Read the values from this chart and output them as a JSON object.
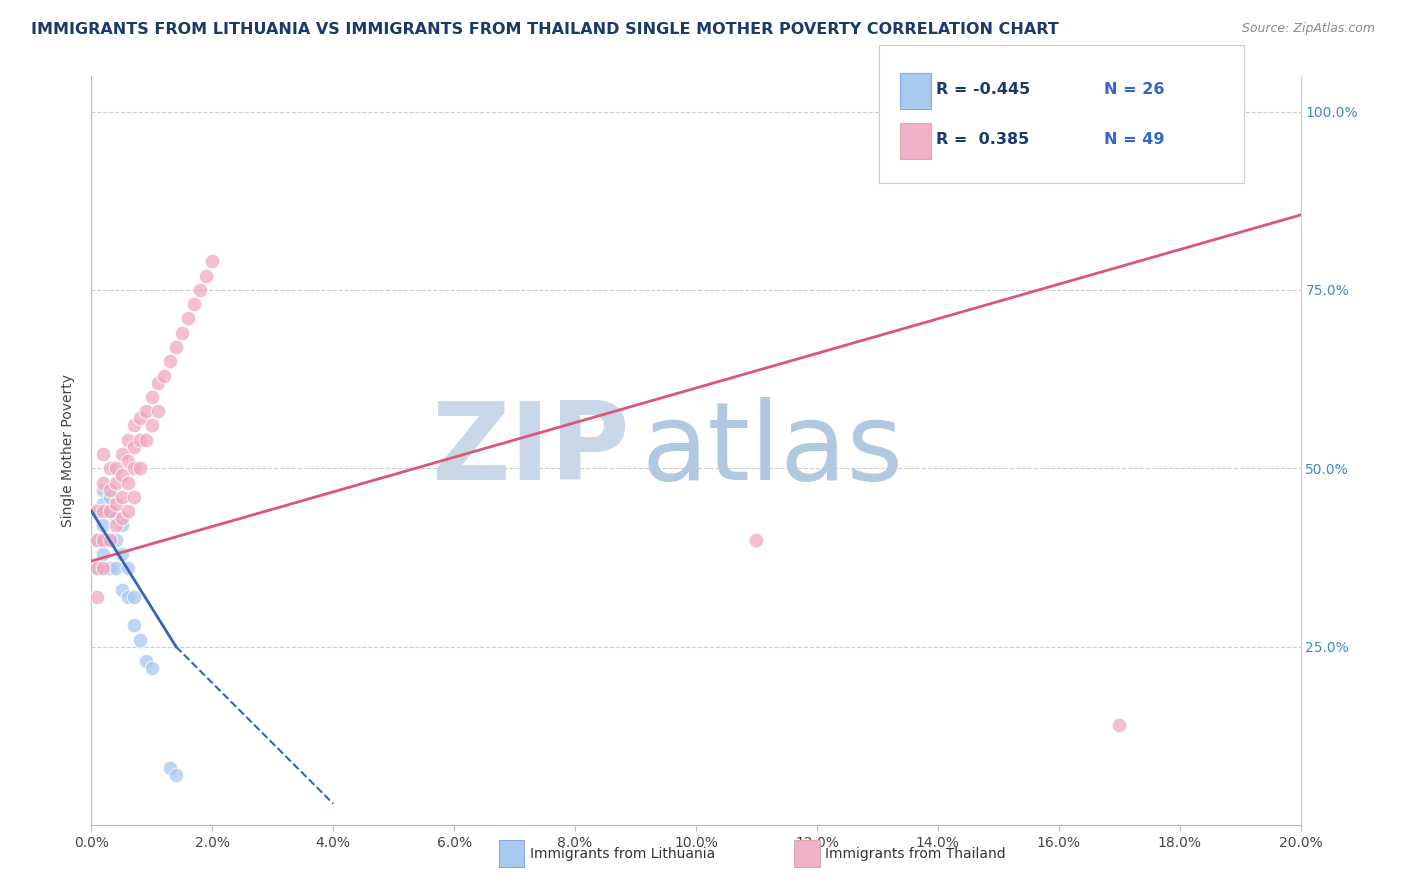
{
  "title": "IMMIGRANTS FROM LITHUANIA VS IMMIGRANTS FROM THAILAND SINGLE MOTHER POVERTY CORRELATION CHART",
  "source_text": "Source: ZipAtlas.com",
  "ylabel": "Single Mother Poverty",
  "xlim": [
    0.0,
    0.2
  ],
  "ylim": [
    0.0,
    1.05
  ],
  "title_color": "#1a3a6b",
  "title_fontsize": 11.5,
  "background_color": "#ffffff",
  "plot_bg_color": "#ffffff",
  "watermark_zip": "ZIP",
  "watermark_atlas": "atlas",
  "watermark_color_zip": "#c8d8e8",
  "watermark_color_atlas": "#b0c8e0",
  "legend_R1": "-0.445",
  "legend_N1": "26",
  "legend_R2": "0.385",
  "legend_N2": "49",
  "legend_color1": "#a8c8f0",
  "legend_color2": "#f0b0c8",
  "scatter_color1": "#a8c8f0",
  "scatter_color2": "#f0a8be",
  "line_color1": "#3366bb",
  "line_color2": "#dd5577",
  "lith_x": [
    0.001,
    0.001,
    0.001,
    0.002,
    0.002,
    0.002,
    0.002,
    0.003,
    0.003,
    0.003,
    0.003,
    0.004,
    0.004,
    0.004,
    0.005,
    0.005,
    0.005,
    0.006,
    0.006,
    0.007,
    0.007,
    0.008,
    0.009,
    0.01,
    0.013,
    0.014
  ],
  "lith_y": [
    0.44,
    0.4,
    0.36,
    0.47,
    0.45,
    0.42,
    0.38,
    0.46,
    0.44,
    0.4,
    0.36,
    0.43,
    0.4,
    0.36,
    0.42,
    0.38,
    0.33,
    0.36,
    0.32,
    0.32,
    0.28,
    0.26,
    0.23,
    0.22,
    0.08,
    0.07
  ],
  "thai_x": [
    0.001,
    0.001,
    0.001,
    0.001,
    0.002,
    0.002,
    0.002,
    0.002,
    0.002,
    0.003,
    0.003,
    0.003,
    0.003,
    0.004,
    0.004,
    0.004,
    0.004,
    0.005,
    0.005,
    0.005,
    0.005,
    0.006,
    0.006,
    0.006,
    0.006,
    0.007,
    0.007,
    0.007,
    0.007,
    0.008,
    0.008,
    0.008,
    0.009,
    0.009,
    0.01,
    0.01,
    0.011,
    0.011,
    0.012,
    0.013,
    0.014,
    0.015,
    0.016,
    0.017,
    0.018,
    0.019,
    0.02,
    0.11,
    0.17
  ],
  "thai_y": [
    0.44,
    0.4,
    0.36,
    0.32,
    0.52,
    0.48,
    0.44,
    0.4,
    0.36,
    0.5,
    0.47,
    0.44,
    0.4,
    0.5,
    0.48,
    0.45,
    0.42,
    0.52,
    0.49,
    0.46,
    0.43,
    0.54,
    0.51,
    0.48,
    0.44,
    0.56,
    0.53,
    0.5,
    0.46,
    0.57,
    0.54,
    0.5,
    0.58,
    0.54,
    0.6,
    0.56,
    0.62,
    0.58,
    0.63,
    0.65,
    0.67,
    0.69,
    0.71,
    0.73,
    0.75,
    0.77,
    0.79,
    0.4,
    0.14
  ],
  "thai_line_x0": 0.0,
  "thai_line_x1": 0.2,
  "thai_line_y0": 0.37,
  "thai_line_y1": 0.855,
  "lith_line_solid_x0": 0.0,
  "lith_line_solid_x1": 0.014,
  "lith_line_solid_y0": 0.44,
  "lith_line_solid_y1": 0.25,
  "lith_line_dash_x0": 0.014,
  "lith_line_dash_x1": 0.04,
  "lith_line_dash_y0": 0.25,
  "lith_line_dash_y1": 0.03
}
